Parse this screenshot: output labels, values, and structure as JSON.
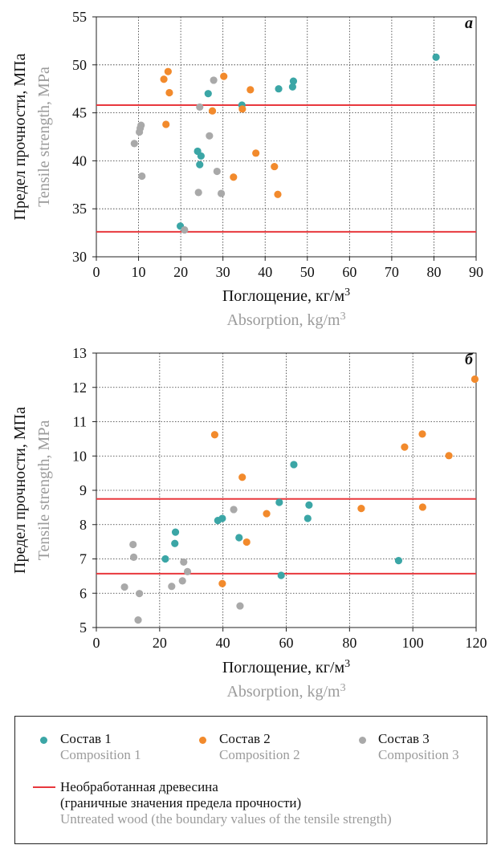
{
  "colors": {
    "composition1": "#3ba6a6",
    "composition2": "#f28a2c",
    "composition3": "#a9a9a9",
    "boundary": "#e8383d",
    "english_text": "#9b9b9b"
  },
  "chart_data": [
    {
      "type": "scatter",
      "panel_label": "a",
      "xlabel": "Поглощение, кг/м³",
      "xlabel_en": "Absorption, kg/m³",
      "ylabel": "Предел прочности, МПа",
      "ylabel_en": "Tensile strength, MPa",
      "xlim": [
        0,
        90
      ],
      "ylim": [
        30,
        55
      ],
      "x_ticks": [
        0,
        10,
        20,
        30,
        40,
        50,
        60,
        70,
        80,
        90
      ],
      "y_ticks": [
        30,
        35,
        40,
        45,
        50,
        55
      ],
      "grid": true,
      "boundary_lines": [
        45.8,
        32.6
      ],
      "series": [
        {
          "name": "Состав 1",
          "points": [
            [
              19.9,
              33.2
            ],
            [
              24.0,
              41.0
            ],
            [
              24.5,
              39.6
            ],
            [
              24.8,
              40.5
            ],
            [
              26.5,
              47.0
            ],
            [
              34.5,
              45.8
            ],
            [
              43.2,
              47.5
            ],
            [
              46.5,
              47.7
            ],
            [
              46.7,
              48.3
            ],
            [
              80.5,
              50.8
            ]
          ]
        },
        {
          "name": "Состав 2",
          "points": [
            [
              16.0,
              48.5
            ],
            [
              16.5,
              43.8
            ],
            [
              17.0,
              49.3
            ],
            [
              17.3,
              47.1
            ],
            [
              27.5,
              45.2
            ],
            [
              30.2,
              48.8
            ],
            [
              32.5,
              38.3
            ],
            [
              34.6,
              45.4
            ],
            [
              36.5,
              47.4
            ],
            [
              37.8,
              40.8
            ],
            [
              42.2,
              39.4
            ],
            [
              43.0,
              36.5
            ]
          ]
        },
        {
          "name": "Состав 3",
          "points": [
            [
              9.0,
              41.8
            ],
            [
              10.2,
              43.0
            ],
            [
              10.4,
              43.4
            ],
            [
              10.6,
              43.7
            ],
            [
              10.8,
              38.4
            ],
            [
              20.9,
              32.8
            ],
            [
              24.2,
              36.7
            ],
            [
              24.5,
              45.6
            ],
            [
              26.8,
              42.6
            ],
            [
              27.8,
              48.4
            ],
            [
              28.6,
              38.9
            ],
            [
              29.6,
              36.6
            ]
          ]
        }
      ]
    },
    {
      "type": "scatter",
      "panel_label": "б",
      "xlabel": "Поглощение, кг/м³",
      "xlabel_en": "Absorption, kg/m³",
      "ylabel": "Предел прочности, МПа",
      "ylabel_en": "Tensile strength, MPa",
      "xlim": [
        0,
        120
      ],
      "ylim": [
        5,
        13
      ],
      "x_ticks": [
        0,
        20,
        40,
        60,
        80,
        100,
        120
      ],
      "y_ticks": [
        5,
        6,
        7,
        8,
        9,
        10,
        11,
        12,
        13
      ],
      "grid": true,
      "boundary_lines": [
        8.75,
        6.57
      ],
      "series": [
        {
          "name": "Состав 1",
          "points": [
            [
              21.8,
              7.0
            ],
            [
              24.8,
              7.45
            ],
            [
              25.0,
              7.78
            ],
            [
              38.4,
              8.12
            ],
            [
              39.8,
              8.18
            ],
            [
              45.1,
              7.62
            ],
            [
              57.8,
              8.65
            ],
            [
              58.4,
              6.52
            ],
            [
              62.4,
              9.75
            ],
            [
              66.8,
              8.18
            ],
            [
              67.2,
              8.57
            ],
            [
              95.5,
              6.95
            ]
          ]
        },
        {
          "name": "Состав 2",
          "points": [
            [
              37.4,
              10.62
            ],
            [
              39.8,
              6.28
            ],
            [
              46.1,
              9.38
            ],
            [
              47.5,
              7.49
            ],
            [
              53.8,
              8.32
            ],
            [
              83.7,
              8.47
            ],
            [
              97.4,
              10.26
            ],
            [
              103.0,
              10.64
            ],
            [
              103.1,
              8.51
            ],
            [
              111.4,
              10.01
            ],
            [
              119.6,
              12.24
            ]
          ]
        },
        {
          "name": "Состав 3",
          "points": [
            [
              8.9,
              6.18
            ],
            [
              11.6,
              7.42
            ],
            [
              11.8,
              7.05
            ],
            [
              13.2,
              5.22
            ],
            [
              13.6,
              5.99
            ],
            [
              23.8,
              6.2
            ],
            [
              27.2,
              6.36
            ],
            [
              27.6,
              6.91
            ],
            [
              28.8,
              6.63
            ],
            [
              43.4,
              8.44
            ],
            [
              45.4,
              5.63
            ]
          ]
        }
      ]
    }
  ],
  "legend": {
    "items": [
      {
        "ru": "Состав 1",
        "en": "Composition 1"
      },
      {
        "ru": "Состав 2",
        "en": "Composition 2"
      },
      {
        "ru": "Состав 3",
        "en": "Composition 3"
      }
    ],
    "boundary": {
      "ru_line1": "Необработанная древесина",
      "ru_line2": "(граничные значения предела прочности)",
      "en": "Untreated wood (the boundary values of the tensile strength)"
    }
  }
}
